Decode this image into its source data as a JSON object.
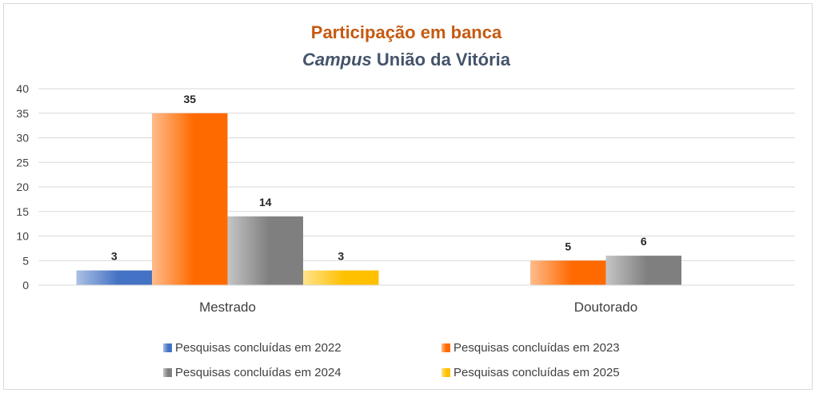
{
  "chart_data": {
    "type": "bar",
    "title": "Participação em banca",
    "subtitle_italic": "Campus",
    "subtitle_rest": " União da Vitória",
    "categories": [
      "Mestrado",
      "Doutorado"
    ],
    "series": [
      {
        "name": "Pesquisas concluídas em 2022",
        "values": [
          3,
          null
        ],
        "color": "#4472c4"
      },
      {
        "name": "Pesquisas concluídas em 2023",
        "values": [
          35,
          5
        ],
        "color": "#ff6a00"
      },
      {
        "name": "Pesquisas concluídas em 2024",
        "values": [
          14,
          6
        ],
        "color": "#7f7f7f"
      },
      {
        "name": "Pesquisas concluídas em 2025",
        "values": [
          3,
          null
        ],
        "color": "#ffc000"
      }
    ],
    "ylim": [
      0,
      40
    ],
    "yticks": [
      0,
      5,
      10,
      15,
      20,
      25,
      30,
      35,
      40
    ],
    "grid": true,
    "legend": "bottom"
  }
}
